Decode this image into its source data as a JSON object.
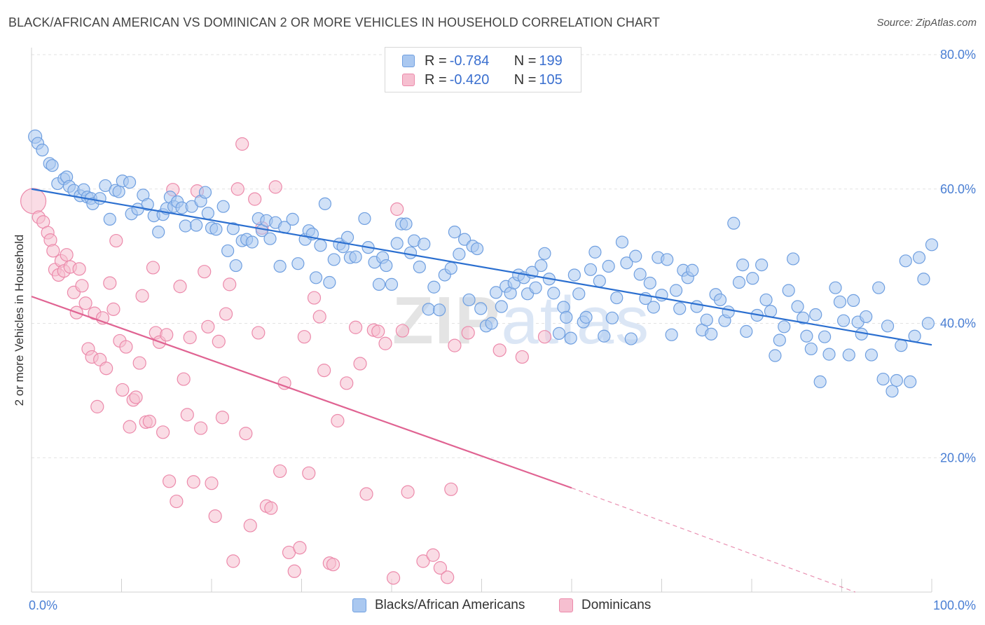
{
  "title": "BLACK/AFRICAN AMERICAN VS DOMINICAN 2 OR MORE VEHICLES IN HOUSEHOLD CORRELATION CHART",
  "source": "Source: ZipAtlas.com",
  "watermark": "ZIPatlas",
  "colors": {
    "blue_fill": "#aac8f0",
    "blue_stroke": "#6f9fe0",
    "blue_line": "#2b6fd0",
    "pink_fill": "#f6bfd0",
    "pink_stroke": "#ec8aab",
    "pink_line": "#e06392",
    "axis_text": "#4a7fd4"
  },
  "legend": {
    "rows": [
      {
        "r_label": "R = ",
        "r_value": "-0.784",
        "n_label": "N = ",
        "n_value": "199"
      },
      {
        "r_label": "R = ",
        "r_value": "-0.420",
        "n_label": "N = ",
        "n_value": "105"
      }
    ]
  },
  "bottom_legend": {
    "items": [
      {
        "label": "Blacks/African Americans"
      },
      {
        "label": "Dominicans"
      }
    ]
  },
  "chart_data": {
    "type": "scatter",
    "title": "BLACK/AFRICAN AMERICAN VS DOMINICAN 2 OR MORE VEHICLES IN HOUSEHOLD CORRELATION CHART",
    "xlabel": "",
    "ylabel": "2 or more Vehicles in Household",
    "xlim": [
      0,
      100
    ],
    "ylim": [
      0,
      80
    ],
    "x_tick_labels": [
      "0.0%",
      "100.0%"
    ],
    "y_ticks": [
      20,
      40,
      60,
      80
    ],
    "y_tick_labels": [
      "20.0%",
      "40.0%",
      "60.0%",
      "80.0%"
    ],
    "grid": true,
    "legend_position": "top-center",
    "series": [
      {
        "name": "Blacks/African Americans",
        "r": -0.784,
        "n": 199,
        "trend": {
          "x0": 0,
          "y0": 60.0,
          "x1": 100,
          "y1": 36.8
        },
        "points": [
          [
            0.4,
            67.8
          ],
          [
            0.7,
            66.8
          ],
          [
            1.2,
            65.8
          ],
          [
            2.0,
            63.8
          ],
          [
            2.3,
            63.5
          ],
          [
            2.9,
            60.8
          ],
          [
            3.6,
            61.5
          ],
          [
            3.9,
            61.8
          ],
          [
            4.2,
            60.4
          ],
          [
            4.7,
            59.8
          ],
          [
            5.4,
            59.0
          ],
          [
            5.8,
            59.9
          ],
          [
            6.2,
            58.8
          ],
          [
            6.6,
            58.6
          ],
          [
            6.8,
            57.8
          ],
          [
            7.6,
            58.6
          ],
          [
            8.2,
            60.5
          ],
          [
            8.7,
            55.5
          ],
          [
            9.3,
            59.8
          ],
          [
            9.7,
            59.6
          ],
          [
            10.1,
            61.2
          ],
          [
            10.9,
            61.0
          ],
          [
            11.1,
            56.3
          ],
          [
            11.8,
            57.0
          ],
          [
            12.4,
            59.1
          ],
          [
            12.9,
            57.7
          ],
          [
            13.6,
            56.0
          ],
          [
            14.1,
            53.6
          ],
          [
            14.6,
            56.2
          ],
          [
            15.0,
            57.1
          ],
          [
            15.4,
            58.8
          ],
          [
            15.8,
            57.4
          ],
          [
            16.2,
            58.1
          ],
          [
            16.7,
            57.2
          ],
          [
            17.1,
            54.5
          ],
          [
            17.8,
            57.4
          ],
          [
            18.3,
            54.6
          ],
          [
            18.8,
            58.2
          ],
          [
            19.3,
            59.5
          ],
          [
            19.6,
            56.4
          ],
          [
            20.0,
            54.2
          ],
          [
            20.5,
            54.0
          ],
          [
            21.3,
            57.4
          ],
          [
            21.8,
            50.8
          ],
          [
            22.4,
            54.1
          ],
          [
            22.7,
            48.6
          ],
          [
            23.4,
            52.3
          ],
          [
            23.9,
            52.5
          ],
          [
            24.5,
            52.1
          ],
          [
            25.2,
            55.6
          ],
          [
            25.6,
            53.8
          ],
          [
            26.1,
            55.3
          ],
          [
            26.5,
            52.6
          ],
          [
            27.1,
            55.0
          ],
          [
            27.6,
            48.5
          ],
          [
            28.1,
            54.3
          ],
          [
            29.0,
            55.5
          ],
          [
            29.6,
            48.9
          ],
          [
            30.4,
            52.5
          ],
          [
            30.8,
            53.8
          ],
          [
            31.2,
            53.3
          ],
          [
            31.6,
            46.8
          ],
          [
            32.1,
            51.6
          ],
          [
            32.6,
            57.8
          ],
          [
            33.1,
            46.1
          ],
          [
            33.6,
            49.5
          ],
          [
            34.2,
            51.8
          ],
          [
            34.6,
            51.4
          ],
          [
            35.1,
            52.8
          ],
          [
            35.4,
            49.8
          ],
          [
            36.0,
            49.9
          ],
          [
            37.0,
            55.6
          ],
          [
            37.4,
            51.3
          ],
          [
            38.1,
            49.1
          ],
          [
            38.6,
            45.8
          ],
          [
            39.0,
            49.8
          ],
          [
            39.4,
            48.6
          ],
          [
            40.0,
            45.8
          ],
          [
            40.6,
            51.9
          ],
          [
            41.1,
            54.8
          ],
          [
            41.6,
            54.8
          ],
          [
            42.1,
            50.5
          ],
          [
            42.5,
            52.3
          ],
          [
            43.1,
            48.4
          ],
          [
            43.6,
            51.8
          ],
          [
            44.1,
            42.1
          ],
          [
            44.7,
            45.4
          ],
          [
            45.3,
            42.0
          ],
          [
            45.9,
            47.2
          ],
          [
            46.6,
            48.2
          ],
          [
            47.0,
            53.6
          ],
          [
            47.5,
            50.3
          ],
          [
            48.1,
            52.5
          ],
          [
            48.6,
            43.5
          ],
          [
            49.0,
            51.5
          ],
          [
            49.5,
            51.1
          ],
          [
            49.9,
            42.2
          ],
          [
            50.5,
            39.6
          ],
          [
            51.1,
            40.0
          ],
          [
            51.6,
            44.6
          ],
          [
            52.2,
            42.5
          ],
          [
            52.7,
            45.5
          ],
          [
            53.2,
            44.5
          ],
          [
            53.6,
            46.0
          ],
          [
            54.1,
            47.2
          ],
          [
            54.7,
            46.8
          ],
          [
            55.1,
            44.4
          ],
          [
            55.6,
            47.6
          ],
          [
            56.0,
            45.3
          ],
          [
            56.6,
            48.6
          ],
          [
            57.0,
            50.4
          ],
          [
            57.5,
            46.6
          ],
          [
            58.0,
            44.5
          ],
          [
            58.6,
            38.5
          ],
          [
            59.1,
            42.4
          ],
          [
            59.4,
            40.9
          ],
          [
            59.9,
            37.8
          ],
          [
            60.3,
            47.2
          ],
          [
            60.8,
            44.4
          ],
          [
            61.3,
            40.2
          ],
          [
            61.6,
            40.9
          ],
          [
            62.1,
            48.0
          ],
          [
            62.6,
            50.6
          ],
          [
            63.1,
            46.3
          ],
          [
            63.6,
            38.1
          ],
          [
            64.1,
            48.5
          ],
          [
            64.5,
            40.8
          ],
          [
            65.0,
            43.8
          ],
          [
            65.6,
            52.1
          ],
          [
            66.1,
            49.0
          ],
          [
            66.6,
            37.7
          ],
          [
            67.1,
            50.0
          ],
          [
            67.6,
            47.3
          ],
          [
            68.2,
            43.7
          ],
          [
            68.7,
            46.0
          ],
          [
            69.1,
            42.4
          ],
          [
            69.6,
            49.8
          ],
          [
            70.0,
            44.2
          ],
          [
            70.6,
            49.5
          ],
          [
            71.1,
            38.3
          ],
          [
            71.6,
            44.9
          ],
          [
            72.0,
            42.2
          ],
          [
            72.4,
            47.9
          ],
          [
            72.9,
            46.8
          ],
          [
            73.4,
            47.9
          ],
          [
            73.9,
            42.5
          ],
          [
            74.5,
            39.0
          ],
          [
            75.0,
            40.5
          ],
          [
            75.5,
            38.4
          ],
          [
            76.0,
            44.3
          ],
          [
            76.5,
            43.5
          ],
          [
            77.0,
            40.4
          ],
          [
            77.4,
            41.7
          ],
          [
            78.0,
            54.9
          ],
          [
            78.6,
            46.1
          ],
          [
            79.0,
            48.7
          ],
          [
            79.4,
            38.8
          ],
          [
            80.1,
            46.7
          ],
          [
            80.6,
            41.2
          ],
          [
            81.1,
            48.7
          ],
          [
            81.6,
            43.5
          ],
          [
            82.1,
            41.8
          ],
          [
            82.6,
            35.2
          ],
          [
            83.1,
            37.5
          ],
          [
            83.6,
            39.5
          ],
          [
            84.1,
            44.9
          ],
          [
            84.6,
            49.6
          ],
          [
            85.1,
            42.5
          ],
          [
            85.7,
            40.8
          ],
          [
            86.1,
            38.1
          ],
          [
            86.6,
            36.2
          ],
          [
            87.1,
            41.3
          ],
          [
            87.6,
            31.3
          ],
          [
            88.1,
            38.0
          ],
          [
            88.6,
            35.4
          ],
          [
            89.3,
            45.3
          ],
          [
            89.8,
            43.2
          ],
          [
            90.2,
            40.4
          ],
          [
            90.8,
            35.3
          ],
          [
            91.3,
            43.4
          ],
          [
            91.8,
            40.2
          ],
          [
            92.2,
            38.4
          ],
          [
            92.7,
            41.0
          ],
          [
            93.3,
            35.3
          ],
          [
            94.1,
            45.3
          ],
          [
            94.6,
            31.7
          ],
          [
            95.1,
            39.6
          ],
          [
            95.6,
            29.9
          ],
          [
            96.1,
            31.5
          ],
          [
            96.6,
            36.7
          ],
          [
            97.1,
            49.3
          ],
          [
            97.6,
            31.3
          ],
          [
            98.1,
            38.1
          ],
          [
            98.6,
            49.8
          ],
          [
            99.1,
            46.6
          ],
          [
            99.6,
            40.0
          ],
          [
            100.0,
            51.7
          ]
        ]
      },
      {
        "name": "Dominicans",
        "r": -0.42,
        "n": 105,
        "trend": {
          "x0": 0,
          "y0": 44.0,
          "x1": 60,
          "y1": 15.5,
          "dashed_to_x": 91.5,
          "dashed_to_y": 0
        },
        "points": [
          [
            0.2,
            58.2
          ],
          [
            0.8,
            55.8
          ],
          [
            1.3,
            55.1
          ],
          [
            1.8,
            53.5
          ],
          [
            2.1,
            52.4
          ],
          [
            2.4,
            50.8
          ],
          [
            2.6,
            48.0
          ],
          [
            3.0,
            47.2
          ],
          [
            3.3,
            49.3
          ],
          [
            3.6,
            47.8
          ],
          [
            3.9,
            50.2
          ],
          [
            4.3,
            48.4
          ],
          [
            4.7,
            44.6
          ],
          [
            5.0,
            41.6
          ],
          [
            5.3,
            48.1
          ],
          [
            5.6,
            45.6
          ],
          [
            6.0,
            43.0
          ],
          [
            6.3,
            36.2
          ],
          [
            6.7,
            35.0
          ],
          [
            7.0,
            41.5
          ],
          [
            7.3,
            27.6
          ],
          [
            7.6,
            34.6
          ],
          [
            7.9,
            40.8
          ],
          [
            8.3,
            33.3
          ],
          [
            8.7,
            46.0
          ],
          [
            9.1,
            42.1
          ],
          [
            9.4,
            52.3
          ],
          [
            9.8,
            37.4
          ],
          [
            10.1,
            30.1
          ],
          [
            10.5,
            36.5
          ],
          [
            10.9,
            24.6
          ],
          [
            11.3,
            28.6
          ],
          [
            11.6,
            29.0
          ],
          [
            12.0,
            34.1
          ],
          [
            12.3,
            44.1
          ],
          [
            12.7,
            25.3
          ],
          [
            13.1,
            25.4
          ],
          [
            13.5,
            48.3
          ],
          [
            13.8,
            38.6
          ],
          [
            14.2,
            37.2
          ],
          [
            14.6,
            23.8
          ],
          [
            15.0,
            38.3
          ],
          [
            15.3,
            16.5
          ],
          [
            15.7,
            59.9
          ],
          [
            16.1,
            13.5
          ],
          [
            16.5,
            45.5
          ],
          [
            16.9,
            31.7
          ],
          [
            17.3,
            26.4
          ],
          [
            17.6,
            37.9
          ],
          [
            18.0,
            16.4
          ],
          [
            18.4,
            59.7
          ],
          [
            18.8,
            24.4
          ],
          [
            19.2,
            47.7
          ],
          [
            19.6,
            39.5
          ],
          [
            20.0,
            16.2
          ],
          [
            20.4,
            11.3
          ],
          [
            20.8,
            37.3
          ],
          [
            21.2,
            26.0
          ],
          [
            21.6,
            41.4
          ],
          [
            22.0,
            45.8
          ],
          [
            22.4,
            4.6
          ],
          [
            22.9,
            60.0
          ],
          [
            23.4,
            66.7
          ],
          [
            23.8,
            23.6
          ],
          [
            24.3,
            9.9
          ],
          [
            24.8,
            58.5
          ],
          [
            25.2,
            38.6
          ],
          [
            25.6,
            54.2
          ],
          [
            26.1,
            12.8
          ],
          [
            26.6,
            12.5
          ],
          [
            27.1,
            60.3
          ],
          [
            27.6,
            18.0
          ],
          [
            28.1,
            31.1
          ],
          [
            28.6,
            5.9
          ],
          [
            29.2,
            3.1
          ],
          [
            29.8,
            6.6
          ],
          [
            30.3,
            38.0
          ],
          [
            30.8,
            17.7
          ],
          [
            31.4,
            43.8
          ],
          [
            32.0,
            41.0
          ],
          [
            32.5,
            33.0
          ],
          [
            33.1,
            4.3
          ],
          [
            33.5,
            4.1
          ],
          [
            34.0,
            25.5
          ],
          [
            35.0,
            31.1
          ],
          [
            36.0,
            39.4
          ],
          [
            36.5,
            34.0
          ],
          [
            37.2,
            14.6
          ],
          [
            38.0,
            39.0
          ],
          [
            38.5,
            38.8
          ],
          [
            39.3,
            37.0
          ],
          [
            40.2,
            2.1
          ],
          [
            40.6,
            57.0
          ],
          [
            41.2,
            38.9
          ],
          [
            41.8,
            14.9
          ],
          [
            43.5,
            4.6
          ],
          [
            44.6,
            5.5
          ],
          [
            45.4,
            3.6
          ],
          [
            46.2,
            2.2
          ],
          [
            46.6,
            15.3
          ],
          [
            47.0,
            36.7
          ],
          [
            48.5,
            38.6
          ],
          [
            52.0,
            36.0
          ],
          [
            54.5,
            35.0
          ],
          [
            57.0,
            38.0
          ]
        ]
      }
    ]
  }
}
